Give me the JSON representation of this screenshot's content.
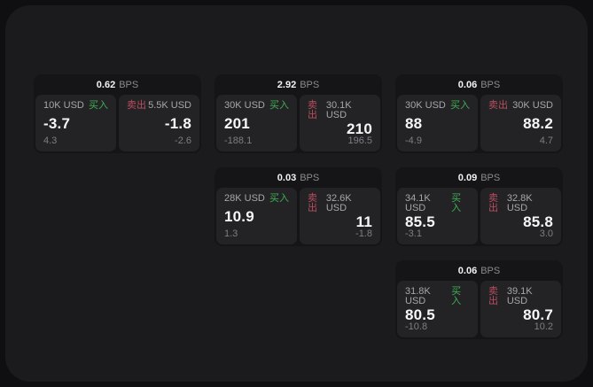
{
  "page": {
    "background": "#0f0f11",
    "panel_background": "#1b1b1d",
    "card_background": "#151517",
    "tile_background": "#232326"
  },
  "labels": {
    "bps": "BPS",
    "buy": "买入",
    "sell": "卖出"
  },
  "colors": {
    "buy_green": "#3faf54",
    "sell_red": "#bb4d5f",
    "price_white": "#f7f7f8",
    "amount_gray": "#a6a6ab",
    "delta_gray": "#7d7d84"
  },
  "cards": [
    {
      "bps": "0.62",
      "buy": {
        "amount": "10K USD",
        "price": "-3.7",
        "delta": "4.3"
      },
      "sell": {
        "amount": "5.5K USD",
        "price": "-1.8",
        "delta": "-2.6"
      }
    },
    {
      "bps": "2.92",
      "buy": {
        "amount": "30K USD",
        "price": "201",
        "delta": "-188.1"
      },
      "sell": {
        "amount": "30.1K USD",
        "price": "210",
        "delta": "196.5"
      }
    },
    {
      "bps": "0.06",
      "buy": {
        "amount": "30K USD",
        "price": "88",
        "delta": "-4.9"
      },
      "sell": {
        "amount": "30K USD",
        "price": "88.2",
        "delta": "4.7"
      }
    },
    {
      "bps": "0.03",
      "buy": {
        "amount": "28K USD",
        "price": "10.9",
        "delta": "1.3"
      },
      "sell": {
        "amount": "32.6K USD",
        "price": "11",
        "delta": "-1.8"
      }
    },
    {
      "bps": "0.09",
      "buy": {
        "amount": "34.1K USD",
        "price": "85.5",
        "delta": "-3.1"
      },
      "sell": {
        "amount": "32.8K USD",
        "price": "85.8",
        "delta": "3.0"
      }
    },
    {
      "bps": "0.06",
      "buy": {
        "amount": "31.8K USD",
        "price": "80.5",
        "delta": "-10.8"
      },
      "sell": {
        "amount": "39.1K USD",
        "price": "80.7",
        "delta": "10.2"
      }
    }
  ]
}
